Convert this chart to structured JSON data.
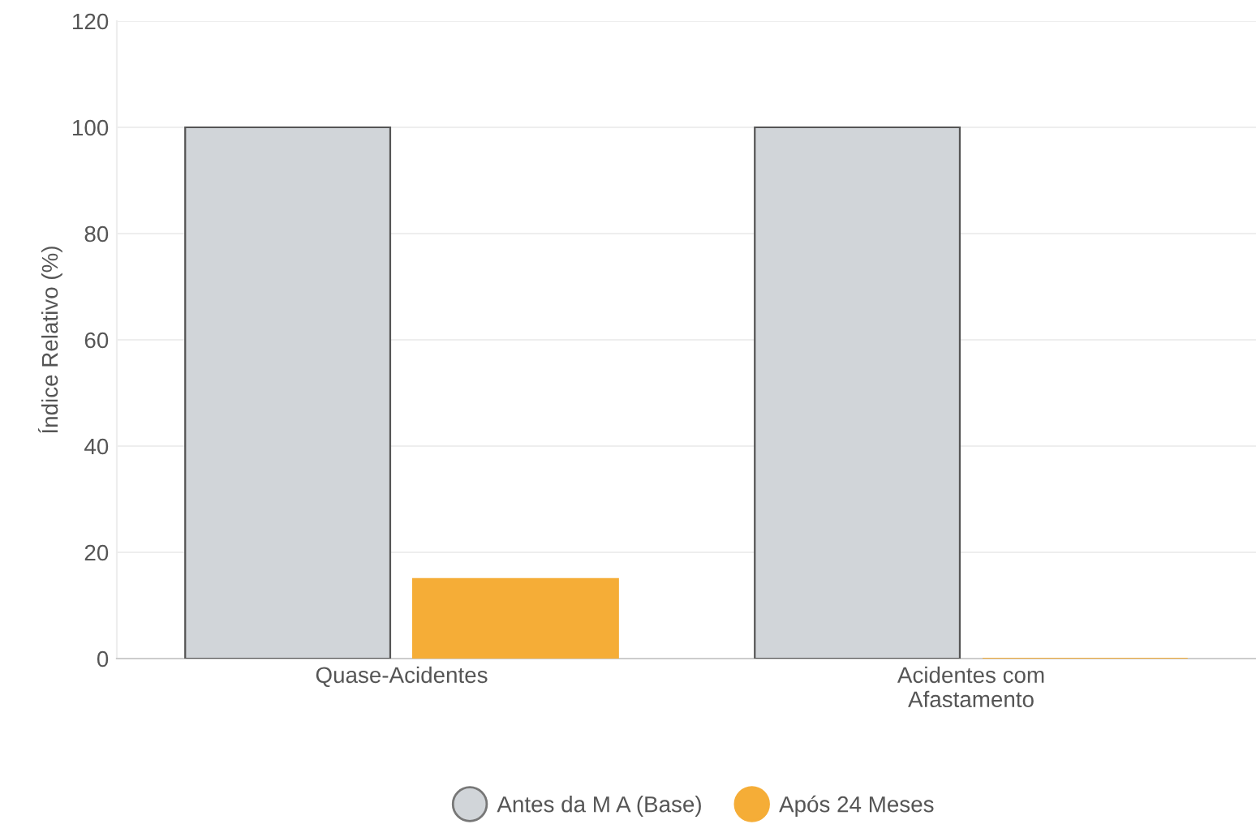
{
  "chart_data": {
    "type": "bar",
    "categories": [
      "Quase-Acidentes",
      "Acidentes com\nAfastamento"
    ],
    "series": [
      {
        "name": "Antes da M A (Base)",
        "color": "#d1d5d9",
        "values": [
          100,
          100
        ]
      },
      {
        "name": "Após 24 Meses",
        "color": "#f5ad37",
        "values": [
          15,
          0
        ]
      }
    ],
    "ylabel": "Índice Relativo (%)",
    "ylim": [
      0,
      120
    ],
    "yticks": [
      0,
      20,
      40,
      60,
      80,
      100,
      120
    ],
    "grid": "y",
    "legend": "bottom"
  }
}
